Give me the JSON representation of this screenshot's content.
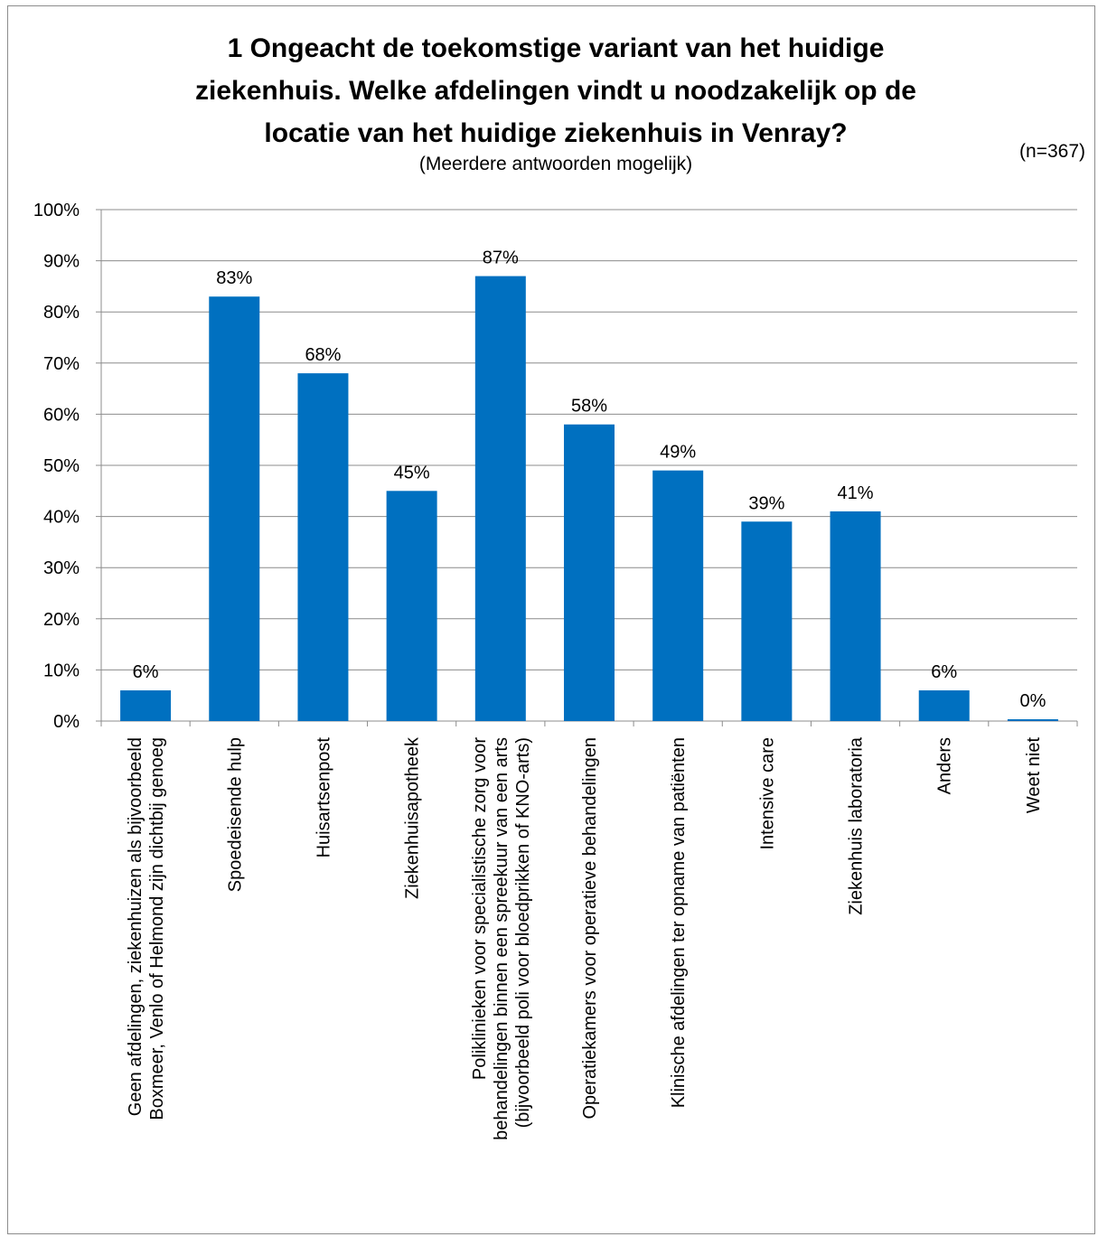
{
  "chart_data": {
    "type": "bar",
    "title": [
      "1 Ongeacht de toekomstige variant van het huidige",
      "ziekenhuis. Welke afdelingen vindt u noodzakelijk op de",
      "locatie van het huidige ziekenhuis in Venray?"
    ],
    "subtitle": "(Meerdere antwoorden mogelijk)",
    "note": "(n=367)",
    "categories": [
      [
        "Geen afdelingen, ziekenhuizen als bijvoorbeeld",
        "Boxmeer, Venlo of Helmond zijn dichtbij genoeg"
      ],
      [
        "Spoedeisende hulp"
      ],
      [
        "Huisartsenpost"
      ],
      [
        "Ziekenhuisapotheek"
      ],
      [
        "Poliklinieken voor specialistische zorg voor",
        "behandelingen binnen een spreekuur van een arts",
        "(bijvoorbeeld poli voor bloedprikken of KNO-arts)"
      ],
      [
        "Operatiekamers voor operatieve behandelingen"
      ],
      [
        "Klinische afdelingen ter opname van patiënten"
      ],
      [
        "Intensive care"
      ],
      [
        "Ziekenhuis laboratoria"
      ],
      [
        "Anders"
      ],
      [
        "Weet niet"
      ]
    ],
    "values": [
      6,
      83,
      68,
      45,
      87,
      58,
      49,
      39,
      41,
      6,
      0
    ],
    "data_labels": [
      "6%",
      "83%",
      "68%",
      "45%",
      "87%",
      "58%",
      "49%",
      "39%",
      "41%",
      "6%",
      "0%"
    ],
    "ylim": [
      0,
      100
    ],
    "y_ticks": [
      0,
      10,
      20,
      30,
      40,
      50,
      60,
      70,
      80,
      90,
      100
    ],
    "y_tick_labels": [
      "0%",
      "10%",
      "20%",
      "30%",
      "40%",
      "50%",
      "60%",
      "70%",
      "80%",
      "90%",
      "100%"
    ],
    "grid": true,
    "bar_color": "#0070C0",
    "xlabel": "",
    "ylabel": ""
  }
}
